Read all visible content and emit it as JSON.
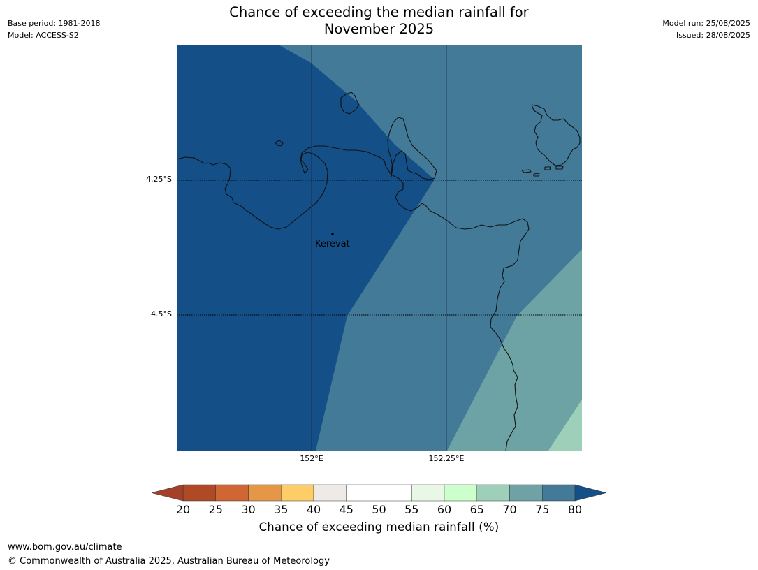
{
  "title_line1": "Chance of exceeding the median rainfall for",
  "title_line2": "November 2025",
  "meta_left": {
    "base_period": "Base period: 1981-2018",
    "model": "Model: ACCESS-S2"
  },
  "meta_right": {
    "model_run": "Model run: 25/08/2025",
    "issued": "Issued: 28/08/2025"
  },
  "map": {
    "latitude_labels": [
      "4.25°S",
      "4.5°S"
    ],
    "longitude_labels": [
      "152°E",
      "152.25°E"
    ],
    "place": {
      "name": "Kerevat"
    },
    "fill_categories": [
      {
        "range": "> 80%",
        "color": "#154f87"
      },
      {
        "range": "75–80%",
        "color": "#427a98"
      },
      {
        "range": "70–75%",
        "color": "#6ea3a5"
      },
      {
        "range": "65–70%",
        "color": "#9ed0b9"
      }
    ]
  },
  "colorbar": {
    "label": "Chance of exceeding median rainfall (%)",
    "ticks": [
      "20",
      "25",
      "30",
      "35",
      "40",
      "45",
      "50",
      "55",
      "60",
      "65",
      "70",
      "75",
      "80"
    ],
    "under_color": "#a4402a",
    "over_color": "#154f87",
    "colors": [
      "#b04a26",
      "#d06633",
      "#e59747",
      "#fecd67",
      "#eeeae6",
      "#ffffff",
      "#ffffff",
      "#e9f7e7",
      "#ccffcc",
      "#9ecfb8",
      "#6ea2a5",
      "#427a98"
    ]
  },
  "footer": {
    "url": "www.bom.gov.au/climate",
    "copyright": "© Commonwealth of Australia 2025, Australian Bureau of Meteorology"
  }
}
